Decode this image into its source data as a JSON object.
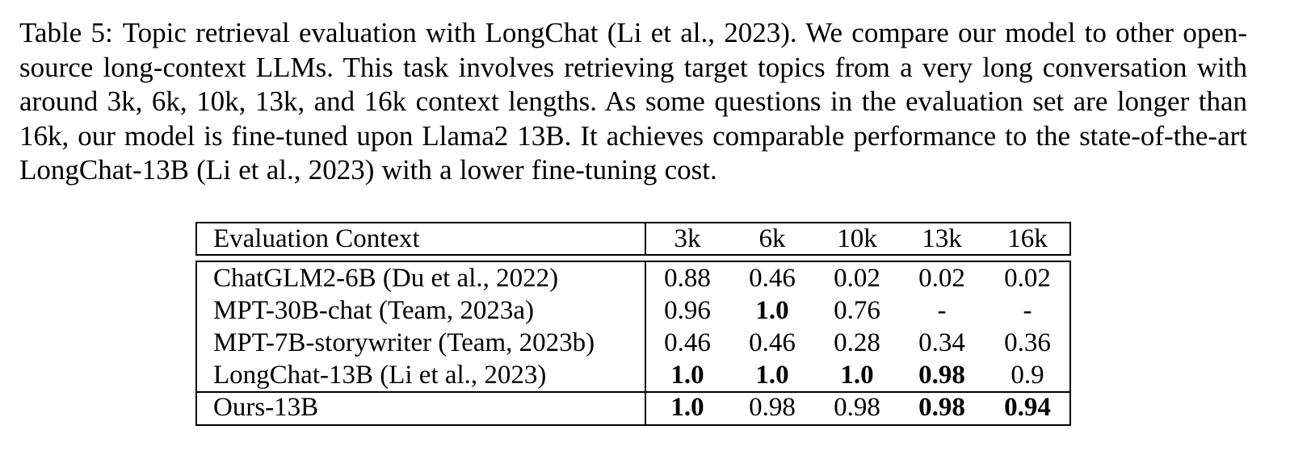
{
  "caption": {
    "label": "Table 5:",
    "text": "Topic retrieval evaluation with LongChat (Li et al., 2023). We compare our model to other open-source long-context LLMs. This task involves retrieving target topics from a very long conversation with around 3k, 6k, 10k, 13k, and 16k context lengths. As some questions in the evaluation set are longer than 16k, our model is fine-tuned upon Llama2 13B. It achieves comparable performance to the state-of-the-art LongChat-13B (Li et al., 2023) with a lower fine-tuning cost."
  },
  "table": {
    "header": {
      "label": "Evaluation Context",
      "columns": [
        "3k",
        "6k",
        "10k",
        "13k",
        "16k"
      ]
    },
    "rows": [
      {
        "model": "ChatGLM2-6B (Du et al., 2022)",
        "values": [
          "0.88",
          "0.46",
          "0.02",
          "0.02",
          "0.02"
        ],
        "bold": [
          false,
          false,
          false,
          false,
          false
        ]
      },
      {
        "model": "MPT-30B-chat (Team, 2023a)",
        "values": [
          "0.96",
          "1.0",
          "0.76",
          "-",
          "-"
        ],
        "bold": [
          false,
          true,
          false,
          false,
          false
        ]
      },
      {
        "model": "MPT-7B-storywriter (Team, 2023b)",
        "values": [
          "0.46",
          "0.46",
          "0.28",
          "0.34",
          "0.36"
        ],
        "bold": [
          false,
          false,
          false,
          false,
          false
        ]
      },
      {
        "model": "LongChat-13B (Li et al., 2023)",
        "values": [
          "1.0",
          "1.0",
          "1.0",
          "0.98",
          "0.9"
        ],
        "bold": [
          true,
          true,
          true,
          true,
          false
        ]
      },
      {
        "model": "Ours-13B",
        "values": [
          "1.0",
          "0.98",
          "0.98",
          "0.98",
          "0.94"
        ],
        "bold": [
          true,
          false,
          false,
          true,
          true
        ]
      }
    ]
  }
}
